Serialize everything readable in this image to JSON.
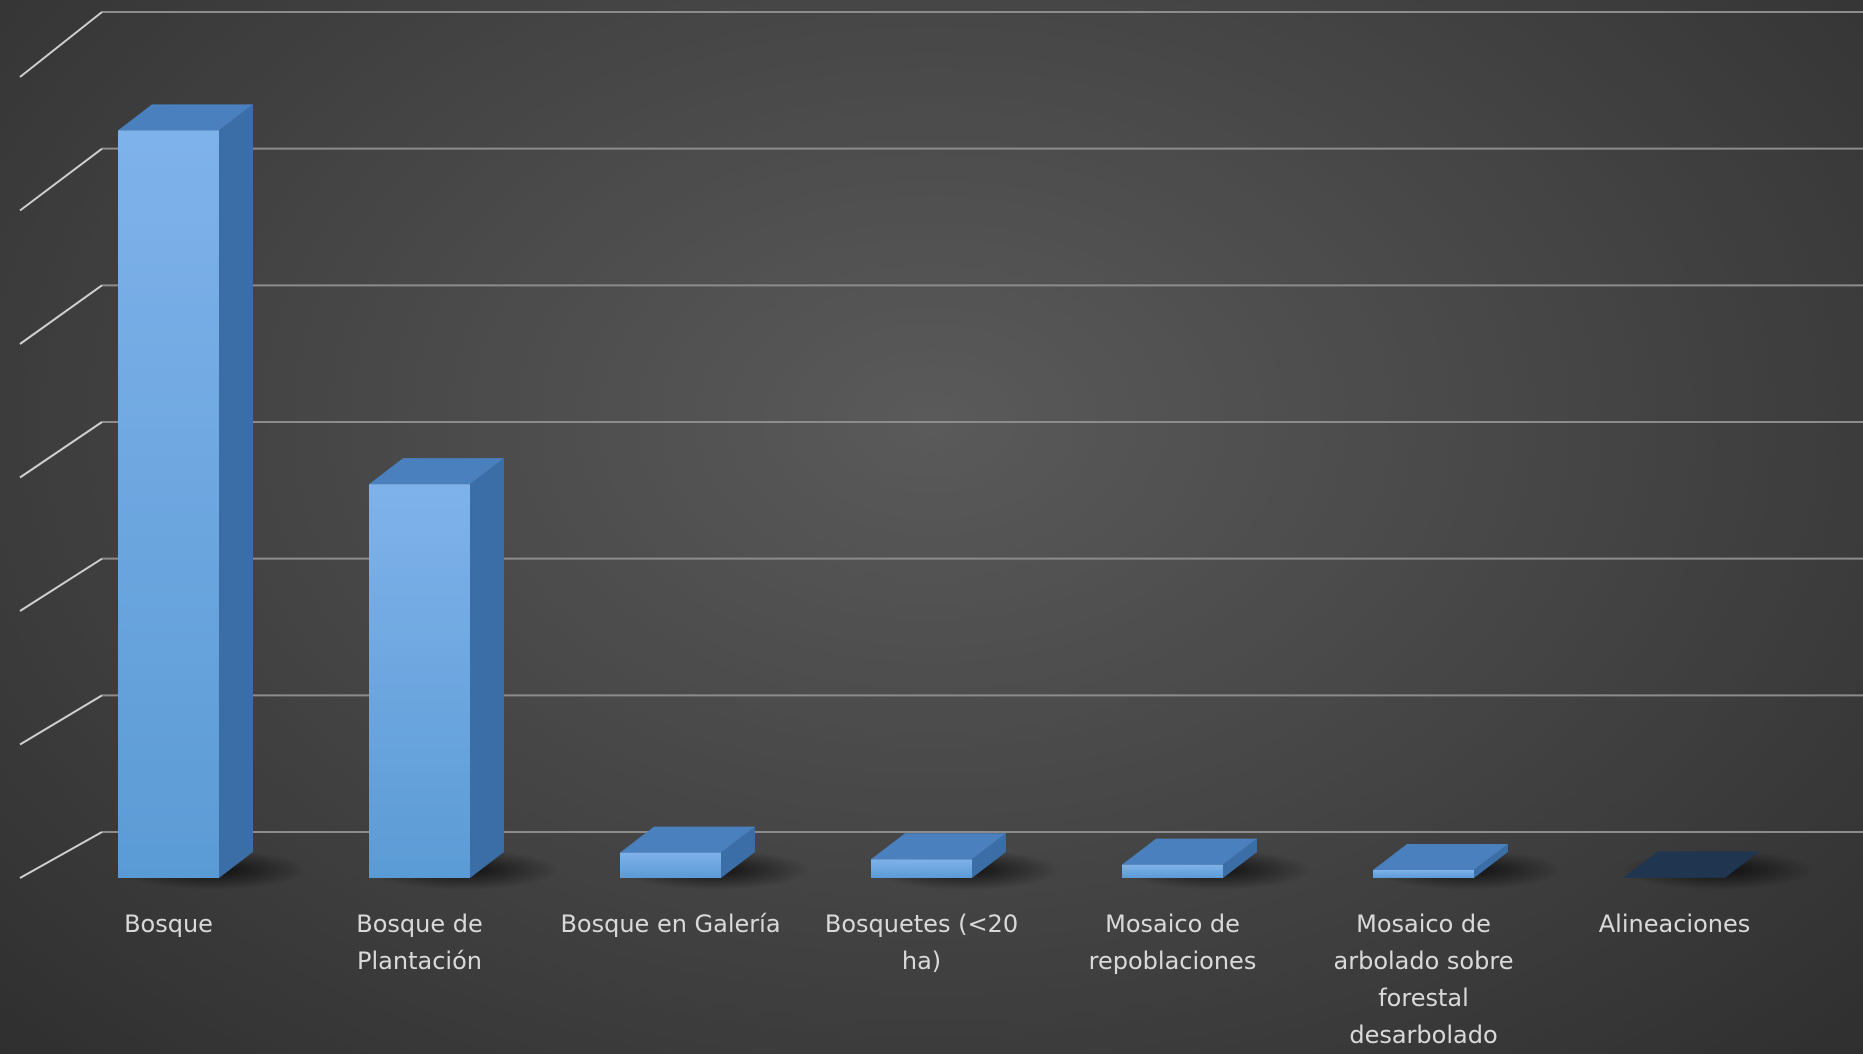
{
  "chart_data": {
    "type": "bar",
    "style": "3d-column",
    "categories": [
      [
        "Bosque"
      ],
      [
        "Bosque de",
        "Plantación"
      ],
      [
        "Bosque en Galería"
      ],
      [
        "Bosquetes (<20",
        "ha)"
      ],
      [
        "Mosaico de",
        "repoblaciones"
      ],
      [
        "Mosaico de",
        "arbolado sobre",
        "forestal",
        "desarbolado"
      ],
      [
        "Alineaciones"
      ]
    ],
    "series": [
      {
        "values": [
          5.6,
          2.95,
          0.19,
          0.14,
          0.1,
          0.06,
          0.005
        ]
      }
    ],
    "ylim": [
      0,
      6
    ],
    "grid": true,
    "legend": "none",
    "title": "",
    "xlabel": "",
    "ylabel": "",
    "colors": {
      "bar_front_top": "#7fb2ea",
      "bar_front_bottom": "#5b9bd5",
      "bar_side": "#3b6ea6",
      "bar_top": "#4a80bd",
      "last_bar": "#1f3550",
      "grid": "#8c8c8c",
      "label": "#d9d9d9"
    }
  }
}
